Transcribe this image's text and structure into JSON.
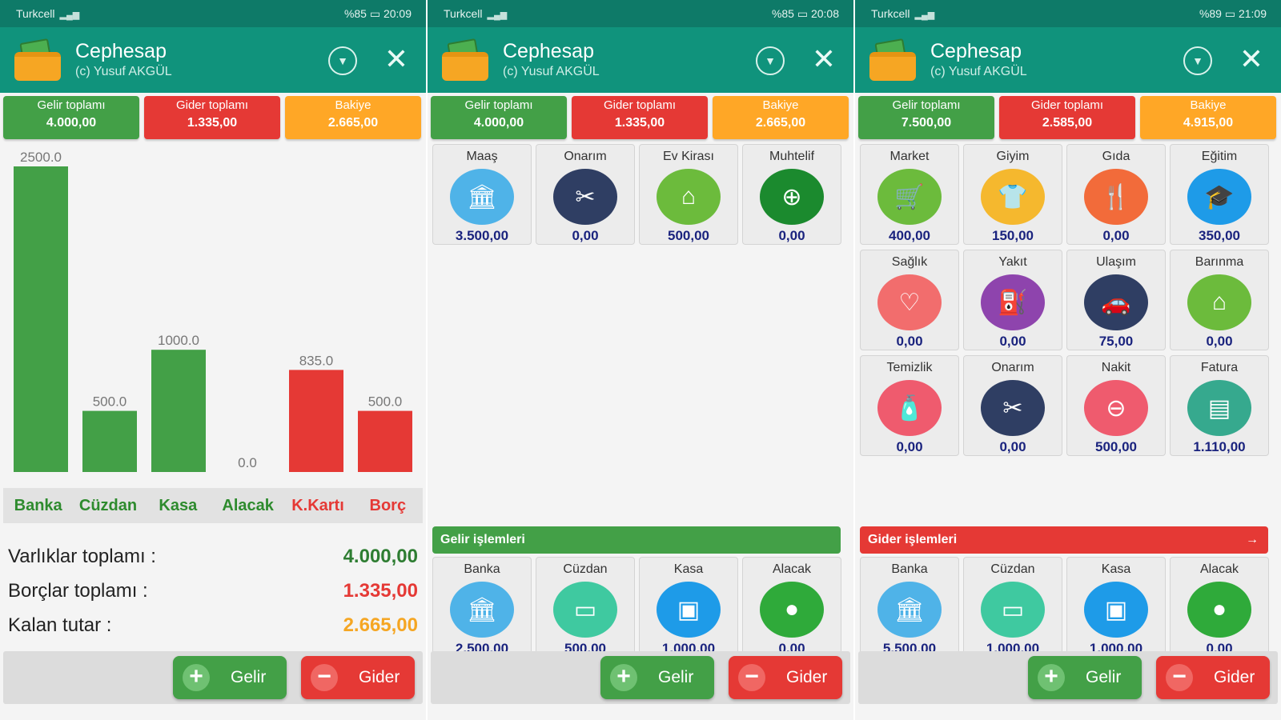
{
  "colors": {
    "income": "#43a047",
    "expense": "#e53935",
    "balance": "#ffa726",
    "header": "#10937c",
    "status": "#0e7a68"
  },
  "app": {
    "title": "Cephesap",
    "subtitle": "(c) Yusuf AKGÜL"
  },
  "screens": [
    {
      "status": {
        "carrier": "Turkcell",
        "right": "%85 ▭ 20:09"
      },
      "summary": {
        "income_label": "Gelir toplamı",
        "income_value": "4.000,00",
        "expense_label": "Gider toplamı",
        "expense_value": "1.335,00",
        "balance_label": "Bakiye",
        "balance_value": "2.665,00"
      },
      "chart_data": {
        "type": "bar",
        "categories": [
          "Banka",
          "Cüzdan",
          "Kasa",
          "Alacak",
          "K.Kartı",
          "Borç"
        ],
        "values": [
          2500.0,
          500.0,
          1000.0,
          0.0,
          835.0,
          500.0
        ],
        "value_labels": [
          "2500.0",
          "500.0",
          "1000.0",
          "0.0",
          "835.0",
          "500.0"
        ],
        "category_colors": [
          "#43a047",
          "#43a047",
          "#43a047",
          "#43a047",
          "#e53935",
          "#e53935"
        ],
        "ylim": [
          0,
          2500
        ],
        "grid": false
      },
      "totals": [
        {
          "label": "Varlıklar toplamı :",
          "value": "4.000,00",
          "color": "#2e7d32"
        },
        {
          "label": "Borçlar toplamı :",
          "value": "1.335,00",
          "color": "#e53935"
        },
        {
          "label": "Kalan tutar :",
          "value": "2.665,00",
          "color": "#f5a623"
        }
      ],
      "buttons": {
        "income": "Gelir",
        "expense": "Gider"
      }
    },
    {
      "status": {
        "carrier": "Turkcell",
        "right": "%85 ▭ 20:08"
      },
      "summary": {
        "income_label": "Gelir toplamı",
        "income_value": "4.000,00",
        "expense_label": "Gider toplamı",
        "expense_value": "1.335,00",
        "balance_label": "Bakiye",
        "balance_value": "2.665,00"
      },
      "categories": [
        {
          "name": "Maaş",
          "value": "3.500,00",
          "icon": "bank-icon",
          "bg": "#4fb3e8",
          "glyph": "🏛"
        },
        {
          "name": "Onarım",
          "value": "0,00",
          "icon": "tools-icon",
          "bg": "#2f3e63",
          "glyph": "✂"
        },
        {
          "name": "Ev Kirası",
          "value": "500,00",
          "icon": "home-icon",
          "bg": "#6cbb3c",
          "glyph": "⌂"
        },
        {
          "name": "Muhtelif",
          "value": "0,00",
          "icon": "misc-money-icon",
          "bg": "#1b8a2e",
          "glyph": "⊕"
        }
      ],
      "section_title": "Gelir işlemleri",
      "accounts": [
        {
          "name": "Banka",
          "value": "2.500,00",
          "icon": "bank-icon",
          "bg": "#4fb3e8",
          "glyph": "🏛"
        },
        {
          "name": "Cüzdan",
          "value": "500,00",
          "icon": "wallet-icon",
          "bg": "#3fc9a0",
          "glyph": "▭"
        },
        {
          "name": "Kasa",
          "value": "1.000,00",
          "icon": "safe-icon",
          "bg": "#1e9be8",
          "glyph": "▣"
        },
        {
          "name": "Alacak",
          "value": "0,00",
          "icon": "receivable-icon",
          "bg": "#2faa3a",
          "glyph": "●"
        }
      ],
      "buttons": {
        "income": "Gelir",
        "expense": "Gider"
      }
    },
    {
      "status": {
        "carrier": "Turkcell",
        "right": "%89 ▭ 21:09"
      },
      "summary": {
        "income_label": "Gelir toplamı",
        "income_value": "7.500,00",
        "expense_label": "Gider toplamı",
        "expense_value": "2.585,00",
        "balance_label": "Bakiye",
        "balance_value": "4.915,00"
      },
      "categories": [
        {
          "name": "Market",
          "value": "400,00",
          "icon": "cart-icon",
          "bg": "#6cbb3c",
          "glyph": "🛒"
        },
        {
          "name": "Giyim",
          "value": "150,00",
          "icon": "shirt-icon",
          "bg": "#f5b82e",
          "glyph": "👕"
        },
        {
          "name": "Gıda",
          "value": "0,00",
          "icon": "cutlery-icon",
          "bg": "#f26b3a",
          "glyph": "🍴"
        },
        {
          "name": "Eğitim",
          "value": "350,00",
          "icon": "graduation-icon",
          "bg": "#1e9be8",
          "glyph": "🎓"
        },
        {
          "name": "Sağlık",
          "value": "0,00",
          "icon": "stethoscope-icon",
          "bg": "#f26d6d",
          "glyph": "♡"
        },
        {
          "name": "Yakıt",
          "value": "0,00",
          "icon": "fuel-icon",
          "bg": "#8e44ad",
          "glyph": "⛽"
        },
        {
          "name": "Ulaşım",
          "value": "75,00",
          "icon": "car-icon",
          "bg": "#2f3e63",
          "glyph": "🚗"
        },
        {
          "name": "Barınma",
          "value": "0,00",
          "icon": "home-icon",
          "bg": "#6cbb3c",
          "glyph": "⌂"
        },
        {
          "name": "Temizlik",
          "value": "0,00",
          "icon": "cleaning-bottle-icon",
          "bg": "#ef5b6e",
          "glyph": "🧴"
        },
        {
          "name": "Onarım",
          "value": "0,00",
          "icon": "tools-icon",
          "bg": "#2f3e63",
          "glyph": "✂"
        },
        {
          "name": "Nakit",
          "value": "500,00",
          "icon": "cash-icon",
          "bg": "#ef5b6e",
          "glyph": "⊖"
        },
        {
          "name": "Fatura",
          "value": "1.110,00",
          "icon": "invoice-icon",
          "bg": "#36a98e",
          "glyph": "▤"
        }
      ],
      "section_title": "Gider işlemleri",
      "section_arrow": "→",
      "accounts": [
        {
          "name": "Banka",
          "value": "5.500,00",
          "icon": "bank-icon",
          "bg": "#4fb3e8",
          "glyph": "🏛"
        },
        {
          "name": "Cüzdan",
          "value": "1.000,00",
          "icon": "wallet-icon",
          "bg": "#3fc9a0",
          "glyph": "▭"
        },
        {
          "name": "Kasa",
          "value": "1.000,00",
          "icon": "safe-icon",
          "bg": "#1e9be8",
          "glyph": "▣"
        },
        {
          "name": "Alacak",
          "value": "0,00",
          "icon": "receivable-icon",
          "bg": "#2faa3a",
          "glyph": "●"
        }
      ],
      "buttons": {
        "income": "Gelir",
        "expense": "Gider"
      }
    }
  ]
}
